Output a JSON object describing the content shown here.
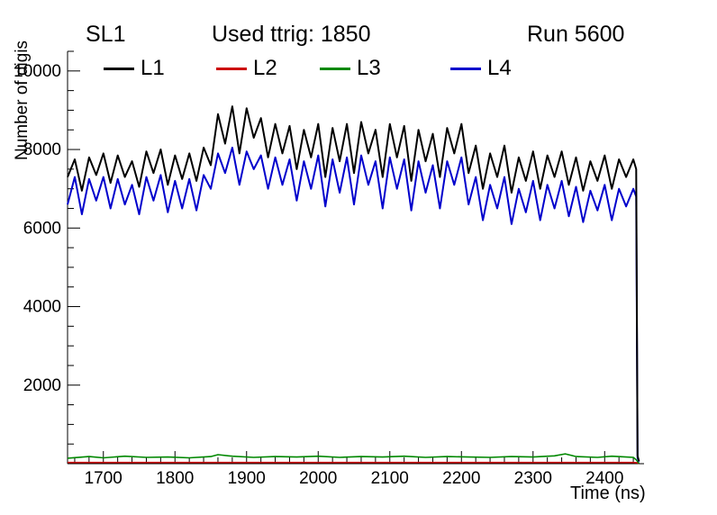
{
  "header": {
    "left": "SL1",
    "center": "Used ttrig: 1850",
    "right": "Run 5600"
  },
  "axes": {
    "y_label": "Number of digis",
    "x_label": "Time (ns)"
  },
  "chart_data": {
    "type": "line",
    "title": "",
    "xlabel": "Time (ns)",
    "ylabel": "Number of digis",
    "xlim": [
      1650,
      2455
    ],
    "ylim": [
      0,
      10500
    ],
    "xticks": [
      1700,
      1800,
      1900,
      2000,
      2100,
      2200,
      2300,
      2400
    ],
    "yticks": [
      2000,
      4000,
      6000,
      8000,
      10000
    ],
    "x_minor_step": 20,
    "y_minor_step": 500,
    "grid": false,
    "legend_position": "top-inside",
    "x": [
      1650,
      1660,
      1670,
      1680,
      1690,
      1700,
      1710,
      1720,
      1730,
      1740,
      1750,
      1760,
      1770,
      1780,
      1790,
      1800,
      1810,
      1820,
      1830,
      1840,
      1850,
      1860,
      1870,
      1880,
      1890,
      1900,
      1910,
      1920,
      1930,
      1940,
      1950,
      1960,
      1970,
      1980,
      1990,
      2000,
      2010,
      2020,
      2030,
      2040,
      2050,
      2060,
      2070,
      2080,
      2090,
      2100,
      2110,
      2120,
      2130,
      2140,
      2150,
      2160,
      2170,
      2180,
      2190,
      2200,
      2210,
      2220,
      2230,
      2240,
      2250,
      2260,
      2270,
      2280,
      2290,
      2300,
      2310,
      2320,
      2330,
      2340,
      2350,
      2360,
      2370,
      2380,
      2390,
      2400,
      2410,
      2420,
      2430,
      2440,
      2444,
      2446,
      2448
    ],
    "series": [
      {
        "name": "L1",
        "color": "#000000",
        "width": 2,
        "values": [
          7300,
          7750,
          6950,
          7800,
          7350,
          7900,
          7150,
          7850,
          7300,
          7700,
          7050,
          7950,
          7400,
          8000,
          7100,
          7850,
          7250,
          7900,
          7200,
          8050,
          7600,
          8900,
          8150,
          9100,
          7900,
          9050,
          8300,
          8800,
          7800,
          8650,
          7900,
          8600,
          7500,
          8500,
          7800,
          8650,
          7300,
          8550,
          7700,
          8650,
          7400,
          8700,
          7900,
          8500,
          7300,
          8650,
          7800,
          8600,
          7200,
          8500,
          7700,
          8400,
          7300,
          8550,
          7900,
          8650,
          7400,
          8100,
          7000,
          7900,
          7300,
          8100,
          6900,
          7800,
          7200,
          7950,
          7000,
          7850,
          7300,
          7950,
          7100,
          7800,
          6950,
          7700,
          7200,
          7850,
          7000,
          7750,
          7300,
          7750,
          7500,
          200,
          60
        ]
      },
      {
        "name": "L2",
        "color": "#cc0000",
        "width": 1.6,
        "x": [
          1650,
          2440,
          2446,
          2448
        ],
        "values": [
          30,
          30,
          20,
          5
        ]
      },
      {
        "name": "L3",
        "color": "#008800",
        "width": 1.6,
        "x": [
          1650,
          1680,
          1700,
          1730,
          1760,
          1790,
          1820,
          1850,
          1860,
          1880,
          1910,
          1940,
          1970,
          2000,
          2030,
          2060,
          2090,
          2120,
          2150,
          2180,
          2210,
          2240,
          2270,
          2300,
          2330,
          2345,
          2360,
          2390,
          2410,
          2430,
          2440,
          2444,
          2448
        ],
        "values": [
          140,
          180,
          150,
          190,
          160,
          170,
          150,
          180,
          230,
          190,
          160,
          180,
          170,
          190,
          160,
          180,
          170,
          190,
          160,
          180,
          170,
          160,
          180,
          170,
          200,
          250,
          180,
          160,
          190,
          170,
          160,
          100,
          10
        ]
      },
      {
        "name": "L4",
        "color": "#0000cc",
        "width": 2,
        "values": [
          6600,
          7300,
          6350,
          7250,
          6700,
          7300,
          6500,
          7250,
          6600,
          7100,
          6350,
          7300,
          6700,
          7350,
          6400,
          7200,
          6500,
          7250,
          6450,
          7350,
          7000,
          7900,
          7400,
          8050,
          7100,
          7950,
          7500,
          7850,
          7000,
          7800,
          7100,
          7750,
          6700,
          7700,
          7000,
          7850,
          6550,
          7750,
          6900,
          7800,
          6600,
          7850,
          7100,
          7700,
          6500,
          7800,
          7000,
          7750,
          6450,
          7700,
          6900,
          7600,
          6500,
          7700,
          7100,
          7800,
          6600,
          7300,
          6200,
          7100,
          6500,
          7300,
          6100,
          7000,
          6400,
          7200,
          6200,
          7100,
          6500,
          7200,
          6300,
          7050,
          6150,
          6950,
          6450,
          7100,
          6200,
          7000,
          6550,
          7000,
          6800,
          150,
          50
        ]
      }
    ]
  }
}
